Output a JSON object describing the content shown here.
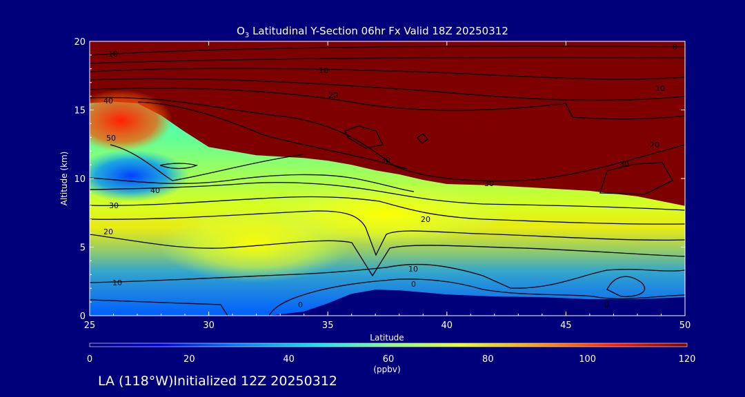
{
  "title": {
    "prefix": "O",
    "sub": "3",
    "rest": " Latitudinal Y-Section 06hr  Fx Valid 18Z 20250312"
  },
  "footer": "LA (118°W)Initialized 12Z 20250312",
  "colors": {
    "background": "#00007b",
    "stratosphere": "#7f0000"
  },
  "chart_data": {
    "type": "heatmap",
    "xlabel": "Latitude",
    "ylabel": "Altitude (km)",
    "xlim": [
      25,
      50
    ],
    "ylim": [
      0,
      20
    ],
    "x_ticks": [
      "25",
      "30",
      "35",
      "40",
      "45",
      "50"
    ],
    "y_ticks": [
      "0",
      "5",
      "10",
      "15",
      "20"
    ],
    "colorbar": {
      "label": "(ppbv)",
      "range": [
        0,
        120
      ],
      "ticks": [
        "0",
        "20",
        "40",
        "60",
        "80",
        "100",
        "120"
      ]
    },
    "contour_labels": [
      "10",
      "10",
      "20",
      "10",
      "0",
      "40",
      "50",
      "20",
      "30",
      "30",
      "30",
      "40",
      "30",
      "20",
      "20",
      "10",
      "10",
      "0",
      "0",
      "0"
    ],
    "terrain": [
      [
        25,
        0
      ],
      [
        32.5,
        0
      ],
      [
        34,
        0.3
      ],
      [
        35,
        0.9
      ],
      [
        36,
        1.6
      ],
      [
        37,
        1.9
      ],
      [
        38,
        1.85
      ],
      [
        40,
        1.55
      ],
      [
        42,
        1.4
      ],
      [
        44,
        1.35
      ],
      [
        46,
        1.2
      ],
      [
        48,
        1.2
      ],
      [
        50,
        1.35
      ]
    ],
    "tropopause": [
      [
        25,
        15.5
      ],
      [
        26,
        15.6
      ],
      [
        27,
        15.5
      ],
      [
        28,
        14.6
      ],
      [
        29,
        13.4
      ],
      [
        30,
        12.3
      ],
      [
        32,
        11.7
      ],
      [
        34,
        11.5
      ],
      [
        35,
        11.3
      ],
      [
        36,
        11.0
      ],
      [
        37,
        10.6
      ],
      [
        38,
        10.3
      ],
      [
        39,
        9.9
      ],
      [
        40,
        9.6
      ],
      [
        42,
        9.5
      ],
      [
        44,
        9.3
      ],
      [
        46,
        9.1
      ],
      [
        48,
        8.7
      ],
      [
        50,
        8.0
      ]
    ]
  }
}
